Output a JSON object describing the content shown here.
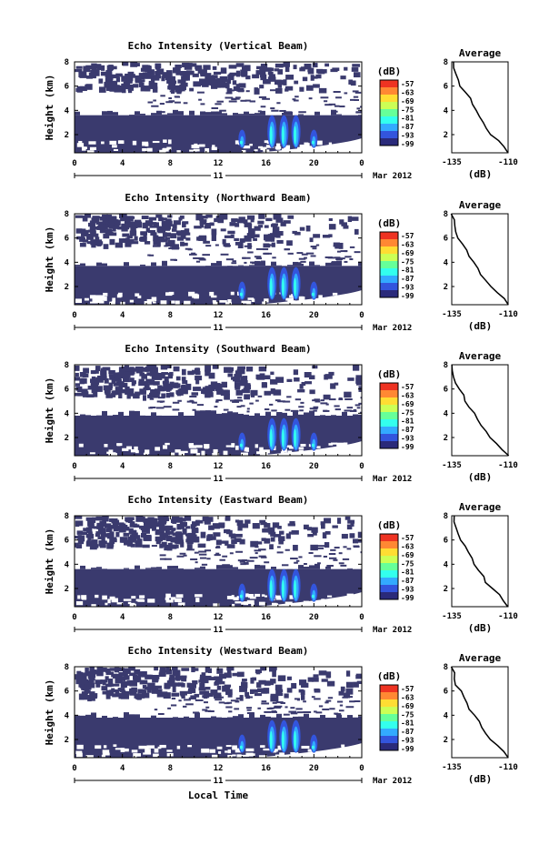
{
  "colors": {
    "background": "#3a3a6e",
    "frame": "#000000",
    "colormap": [
      "#2a2a7a",
      "#3355dd",
      "#33aaff",
      "#33ffee",
      "#66ff99",
      "#ccff55",
      "#ffdd33",
      "#ff8833",
      "#ee3322"
    ]
  },
  "shared": {
    "xlabel": "Local Time",
    "x_ticks": [
      "0",
      "4",
      "8",
      "12",
      "16",
      "20",
      "0"
    ],
    "date_day": "11",
    "date_suffix": "Mar 2012",
    "y_ticks": [
      "2",
      "4",
      "6",
      "8"
    ],
    "ylabel": "Height (km)",
    "cb_unit": "(dB)",
    "cb_ticks": [
      "-57",
      "-63",
      "-69",
      "-75",
      "-81",
      "-87",
      "-93",
      "-99"
    ],
    "avg_title": "Average",
    "avg_x_ticks": [
      "-135",
      "-110"
    ],
    "avg_xlabel": "(dB)"
  },
  "chart_data": [
    {
      "type": "heatmap",
      "title": "Echo Intensity (Vertical Beam)",
      "xlabel": "Local Time",
      "ylabel": "Height (km)",
      "xlim": [
        0,
        24
      ],
      "ylim": [
        0.5,
        8
      ],
      "colorbar_range_db": [
        -99,
        -57
      ],
      "layer_top_km": 3.6,
      "convective_cells_hour": [
        14,
        16.5,
        17.5,
        18.5,
        20
      ],
      "noise_cloud_km": [
        5.8,
        8
      ],
      "average_profile": {
        "title": "Average",
        "xlabel": "(dB)",
        "xlim": [
          -135,
          -110
        ],
        "ylim": [
          0.5,
          8
        ],
        "height_km": [
          0.5,
          1,
          1.5,
          2,
          2.5,
          3,
          3.5,
          4,
          4.5,
          5,
          5.5,
          6,
          6.5,
          7,
          7.5,
          8
        ],
        "db": [
          -110,
          -112,
          -114,
          -118,
          -120,
          -121,
          -123,
          -124,
          -126,
          -127,
          -129,
          -131,
          -132,
          -133,
          -134,
          -134
        ]
      }
    },
    {
      "type": "heatmap",
      "title": "Echo Intensity (Northward Beam)",
      "xlabel": "Local Time",
      "ylabel": "Height (km)",
      "xlim": [
        0,
        24
      ],
      "ylim": [
        0.5,
        8
      ],
      "colorbar_range_db": [
        -99,
        -57
      ],
      "layer_top_km": 3.7,
      "convective_cells_hour": [
        14,
        16.5,
        17.5,
        18.5,
        20
      ],
      "noise_cloud_km": [
        5.5,
        8
      ],
      "average_profile": {
        "title": "Average",
        "xlabel": "(dB)",
        "xlim": [
          -135,
          -110
        ],
        "ylim": [
          0.5,
          8
        ],
        "height_km": [
          0.5,
          1,
          1.5,
          2,
          2.5,
          3,
          3.5,
          4,
          4.5,
          5,
          5.5,
          6,
          6.5,
          7,
          7.5,
          8
        ],
        "db": [
          -110,
          -112,
          -115,
          -118,
          -120,
          -122,
          -123,
          -125,
          -127,
          -128,
          -130,
          -132,
          -133,
          -134,
          -134,
          -135
        ]
      }
    },
    {
      "type": "heatmap",
      "title": "Echo Intensity (Southward Beam)",
      "xlabel": "Local Time",
      "ylabel": "Height (km)",
      "xlim": [
        0,
        24
      ],
      "ylim": [
        0.5,
        8
      ],
      "colorbar_range_db": [
        -99,
        -57
      ],
      "layer_top_km": 3.8,
      "convective_cells_hour": [
        14,
        16.5,
        17.5,
        18.5,
        20
      ],
      "noise_cloud_km": [
        5.5,
        8
      ],
      "average_profile": {
        "title": "Average",
        "xlabel": "(dB)",
        "xlim": [
          -135,
          -110
        ],
        "ylim": [
          0.5,
          8
        ],
        "height_km": [
          0.5,
          1,
          1.5,
          2,
          2.5,
          3,
          3.5,
          4,
          4.5,
          5,
          5.5,
          6,
          6.5,
          7,
          7.5,
          8
        ],
        "db": [
          -110,
          -113,
          -115,
          -118,
          -120,
          -122,
          -124,
          -125,
          -127,
          -129,
          -130,
          -132,
          -133,
          -134,
          -135,
          -135
        ]
      }
    },
    {
      "type": "heatmap",
      "title": "Echo Intensity (Eastward Beam)",
      "xlabel": "Local Time",
      "ylabel": "Height (km)",
      "xlim": [
        0,
        24
      ],
      "ylim": [
        0.5,
        8
      ],
      "colorbar_range_db": [
        -99,
        -57
      ],
      "layer_top_km": 3.6,
      "convective_cells_hour": [
        14,
        16.5,
        17.5,
        18.5,
        20
      ],
      "noise_cloud_km": [
        5.6,
        8
      ],
      "average_profile": {
        "title": "Average",
        "xlabel": "(dB)",
        "xlim": [
          -135,
          -110
        ],
        "ylim": [
          0.5,
          8
        ],
        "height_km": [
          0.5,
          1,
          1.5,
          2,
          2.5,
          3,
          3.5,
          4,
          4.5,
          5,
          5.5,
          6,
          6.5,
          7,
          7.5,
          8
        ],
        "db": [
          -110,
          -112,
          -114,
          -117,
          -120,
          -121,
          -123,
          -125,
          -126,
          -128,
          -129,
          -131,
          -132,
          -133,
          -134,
          -134
        ]
      }
    },
    {
      "type": "heatmap",
      "title": "Echo Intensity (Westward Beam)",
      "xlabel": "Local Time",
      "ylabel": "Height (km)",
      "xlim": [
        0,
        24
      ],
      "ylim": [
        0.5,
        8
      ],
      "colorbar_range_db": [
        -99,
        -57
      ],
      "layer_top_km": 3.8,
      "convective_cells_hour": [
        14,
        16.5,
        17.5,
        18.5,
        20
      ],
      "noise_cloud_km": [
        5.6,
        8
      ],
      "average_profile": {
        "title": "Average",
        "xlabel": "(dB)",
        "xlim": [
          -135,
          -110
        ],
        "ylim": [
          0.5,
          8
        ],
        "height_km": [
          0.5,
          1,
          1.5,
          2,
          2.5,
          3,
          3.5,
          4,
          4.5,
          5,
          5.5,
          6,
          6.5,
          7,
          7.5,
          8
        ],
        "db": [
          -110,
          -112,
          -115,
          -118,
          -120,
          -122,
          -123,
          -125,
          -127,
          -128,
          -130,
          -131,
          -133,
          -134,
          -134,
          -135
        ]
      }
    }
  ]
}
